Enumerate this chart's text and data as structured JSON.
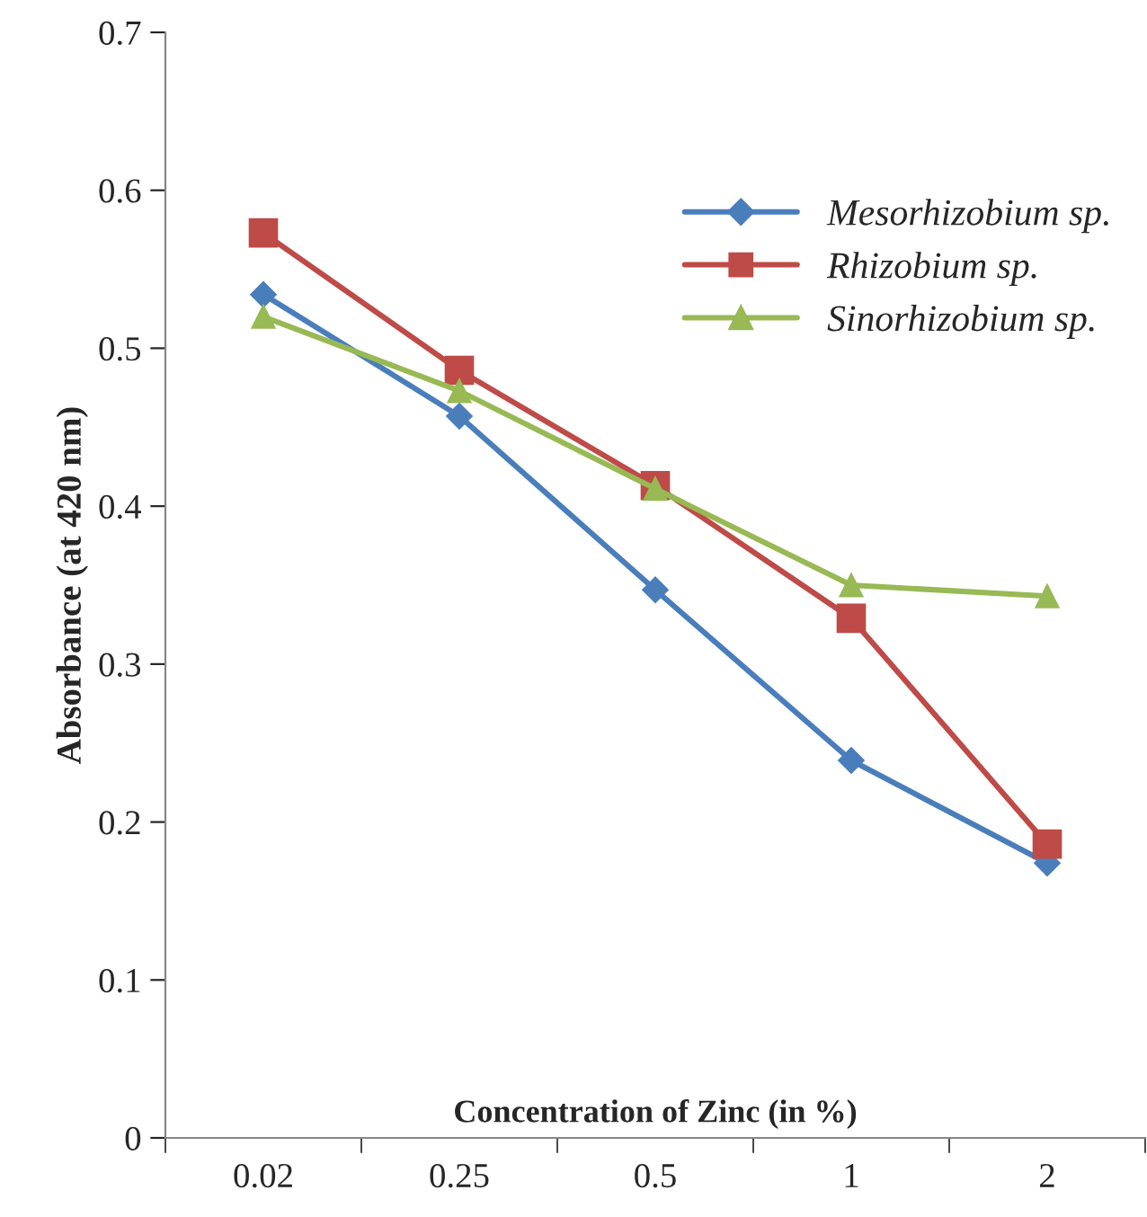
{
  "chart_data": {
    "type": "line",
    "xlabel": "Concentration of Zinc (in %)",
    "ylabel": "Absorbance (at 420 nm)",
    "categories": [
      "0.02",
      "0.25",
      "0.5",
      "1",
      "2"
    ],
    "series": [
      {
        "name": "Mesorhizobium sp.",
        "color": "#4a7ebb",
        "marker": "diamond",
        "values": [
          0.534,
          0.457,
          0.347,
          0.239,
          0.174
        ]
      },
      {
        "name": "Rhizobium sp.",
        "color": "#be4b48",
        "marker": "square",
        "values": [
          0.573,
          0.486,
          0.413,
          0.329,
          0.186
        ]
      },
      {
        "name": "Sinorhizobium sp.",
        "color": "#98b954",
        "marker": "triangle",
        "values": [
          0.52,
          0.473,
          0.411,
          0.35,
          0.343
        ]
      }
    ],
    "ylim": [
      0,
      0.7
    ],
    "yticks": [
      {
        "value": 0,
        "label": "0"
      },
      0.1,
      0.2,
      0.3,
      0.4,
      0.5,
      0.6,
      0.7
    ],
    "grid": false,
    "legend": "top right",
    "line_style": "solid"
  }
}
